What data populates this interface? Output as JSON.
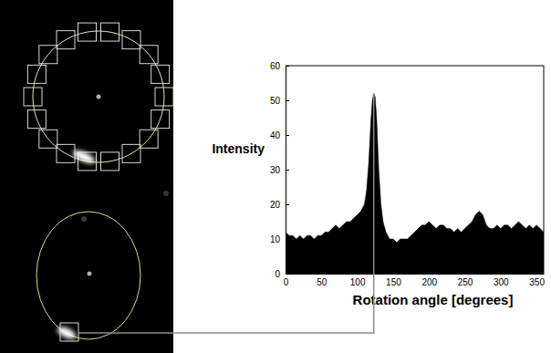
{
  "chart_data": {
    "type": "area",
    "x_label": "Rotation angle [degrees]",
    "y_label": "Intensity",
    "x": [
      0,
      5,
      10,
      15,
      20,
      25,
      30,
      35,
      40,
      45,
      50,
      55,
      60,
      65,
      70,
      75,
      80,
      85,
      90,
      95,
      100,
      105,
      110,
      113,
      116,
      119,
      121,
      123,
      125,
      127,
      130,
      133,
      136,
      140,
      145,
      150,
      155,
      160,
      165,
      170,
      175,
      180,
      185,
      190,
      195,
      200,
      205,
      210,
      215,
      220,
      225,
      230,
      235,
      240,
      245,
      250,
      255,
      260,
      265,
      270,
      275,
      280,
      285,
      290,
      295,
      300,
      305,
      310,
      315,
      320,
      325,
      330,
      335,
      340,
      345,
      350,
      355,
      360
    ],
    "values": [
      12,
      11,
      11,
      10,
      11,
      10,
      11,
      11,
      10,
      11,
      11,
      12,
      12,
      13,
      14,
      13,
      14,
      15,
      15,
      16,
      17,
      18,
      20,
      24,
      32,
      44,
      50,
      52,
      51,
      45,
      30,
      20,
      15,
      12,
      10,
      10,
      9,
      10,
      10,
      10,
      11,
      12,
      13,
      14,
      14,
      15,
      14,
      13,
      14,
      14,
      13,
      13,
      12,
      13,
      12,
      13,
      14,
      15,
      17,
      18,
      17,
      14,
      13,
      13,
      14,
      13,
      14,
      14,
      13,
      14,
      15,
      14,
      13,
      14,
      13,
      14,
      13,
      12
    ],
    "color": "#000000",
    "xlim": [
      0,
      360
    ],
    "ylim": [
      0,
      60
    ],
    "xticks": [
      0,
      50,
      100,
      150,
      200,
      250,
      300,
      350
    ],
    "yticks": [
      0,
      10,
      20,
      30,
      40,
      50,
      60
    ],
    "grid": false
  }
}
